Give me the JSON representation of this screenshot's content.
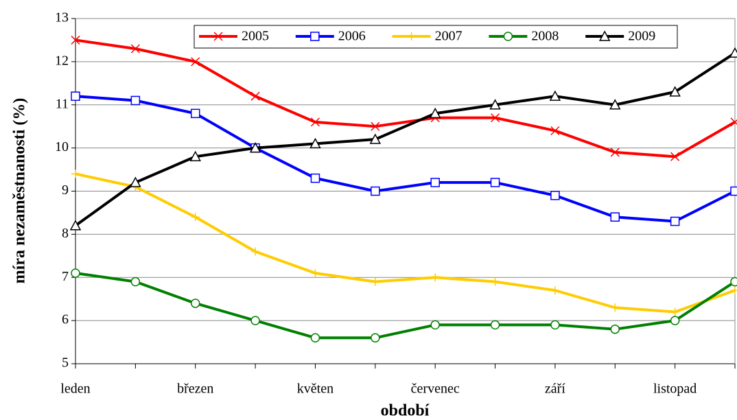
{
  "chart_data": {
    "type": "line",
    "xlabel": "období",
    "ylabel": "míra nezaměstnanosti (%)",
    "categories": [
      "leden",
      null,
      "březen",
      null,
      "květen",
      null,
      "červenec",
      null,
      "září",
      null,
      "listopad",
      null
    ],
    "ylim": [
      5,
      13
    ],
    "yticks": [
      5,
      6,
      7,
      8,
      9,
      10,
      11,
      12,
      13
    ],
    "grid": true,
    "legend": "top",
    "series": [
      {
        "name": "2005",
        "color": "#ff0000",
        "marker": "x",
        "values": [
          12.5,
          12.3,
          12.0,
          11.2,
          10.6,
          10.5,
          10.7,
          10.7,
          10.4,
          9.9,
          9.8,
          10.6
        ]
      },
      {
        "name": "2006",
        "color": "#0000ff",
        "marker": "square",
        "values": [
          11.2,
          11.1,
          10.8,
          10.0,
          9.3,
          9.0,
          9.2,
          9.2,
          8.9,
          8.4,
          8.3,
          9.0
        ]
      },
      {
        "name": "2007",
        "color": "#ffcc00",
        "marker": "plus",
        "values": [
          9.4,
          9.1,
          8.4,
          7.6,
          7.1,
          6.9,
          7.0,
          6.9,
          6.7,
          6.3,
          6.2,
          6.7
        ]
      },
      {
        "name": "2008",
        "color": "#008000",
        "marker": "circle",
        "values": [
          7.1,
          6.9,
          6.4,
          6.0,
          5.6,
          5.6,
          5.9,
          5.9,
          5.9,
          5.8,
          6.0,
          6.9
        ]
      },
      {
        "name": "2009",
        "color": "#000000",
        "marker": "triangle",
        "values": [
          8.2,
          9.2,
          9.8,
          10.0,
          10.1,
          10.2,
          10.8,
          11.0,
          11.2,
          11.0,
          11.3,
          12.2
        ]
      }
    ]
  }
}
